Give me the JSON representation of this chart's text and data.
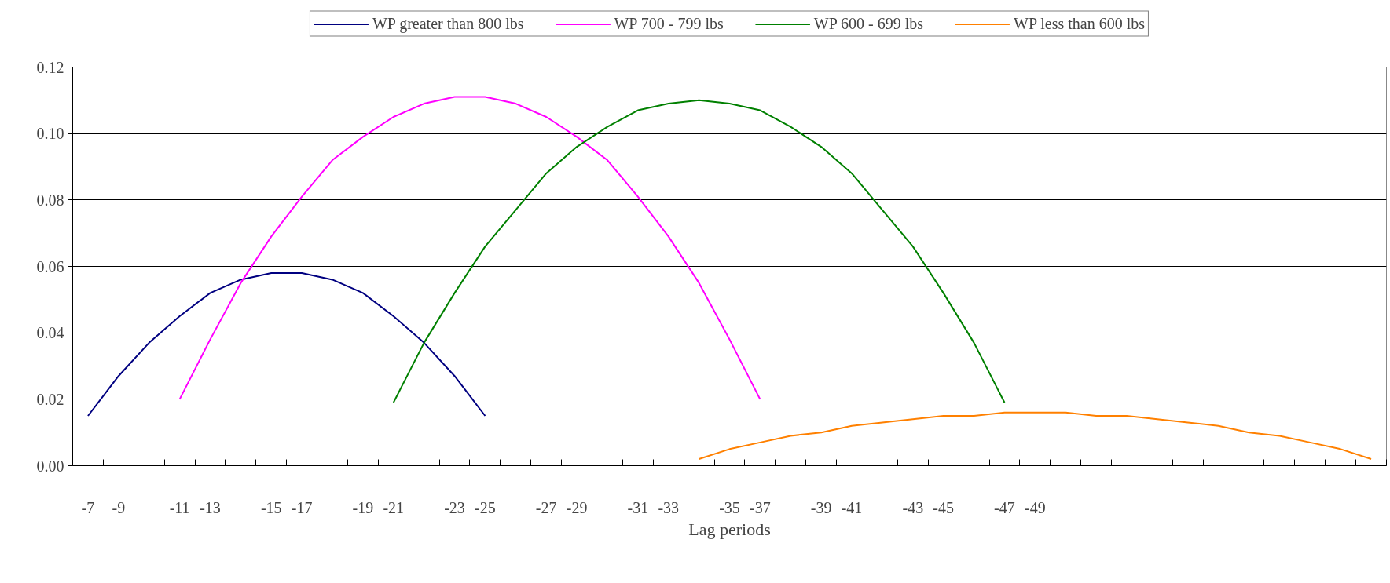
{
  "chart_data": {
    "type": "line",
    "xlabel": "Lag periods",
    "categories": [
      "-7",
      "-9",
      null,
      "-11",
      "-13",
      null,
      "-15",
      "-17",
      null,
      "-19",
      "-21",
      null,
      "-23",
      "-25",
      null,
      "-27",
      "-29",
      null,
      "-31",
      "-33",
      null,
      "-35",
      "-37",
      null,
      "-39",
      "-41",
      null,
      "-43",
      "-45",
      null,
      "-47",
      "-49",
      null,
      null,
      null,
      null,
      null,
      null,
      null,
      null,
      null,
      null,
      null
    ],
    "series": [
      {
        "name": "WP greater than 800 lbs",
        "color": "#000080",
        "values": [
          0.015,
          0.027,
          0.037,
          0.045,
          0.052,
          0.056,
          0.058,
          0.058,
          0.056,
          0.052,
          0.045,
          0.037,
          0.027,
          0.015,
          null,
          null,
          null,
          null,
          null,
          null,
          null,
          null,
          null,
          null,
          null,
          null,
          null,
          null,
          null,
          null,
          null,
          null,
          null,
          null,
          null,
          null,
          null,
          null,
          null,
          null,
          null,
          null,
          null
        ]
      },
      {
        "name": "WP 700 - 799 lbs",
        "color": "#ff00ff",
        "values": [
          null,
          null,
          null,
          0.02,
          0.038,
          0.055,
          0.069,
          0.081,
          0.092,
          0.099,
          0.105,
          0.109,
          0.111,
          0.111,
          0.109,
          0.105,
          0.099,
          0.092,
          0.081,
          0.069,
          0.055,
          0.038,
          0.02,
          null,
          null,
          null,
          null,
          null,
          null,
          null,
          null,
          null,
          null,
          null,
          null,
          null,
          null,
          null,
          null,
          null,
          null,
          null,
          null
        ]
      },
      {
        "name": "WP 600 - 699 lbs",
        "color": "#008000",
        "values": [
          null,
          null,
          null,
          null,
          null,
          null,
          null,
          null,
          null,
          null,
          0.019,
          0.037,
          0.052,
          0.066,
          0.077,
          0.088,
          0.096,
          0.102,
          0.107,
          0.109,
          0.11,
          0.109,
          0.107,
          0.102,
          0.096,
          0.088,
          0.077,
          0.066,
          0.052,
          0.037,
          0.019,
          null,
          null,
          null,
          null,
          null,
          null,
          null,
          null,
          null,
          null,
          null,
          null
        ]
      },
      {
        "name": "WP less than 600 lbs",
        "color": "#ff8000",
        "values": [
          null,
          null,
          null,
          null,
          null,
          null,
          null,
          null,
          null,
          null,
          null,
          null,
          null,
          null,
          null,
          null,
          null,
          null,
          null,
          null,
          0.002,
          0.005,
          0.007,
          0.009,
          0.01,
          0.012,
          0.013,
          0.014,
          0.015,
          0.015,
          0.016,
          0.016,
          0.016,
          0.015,
          0.015,
          0.014,
          0.013,
          0.012,
          0.01,
          0.009,
          0.007,
          0.005,
          0.002
        ]
      }
    ],
    "ylim": [
      0,
      0.12
    ],
    "yticks": [
      {
        "value": 0,
        "label": "0.00"
      },
      {
        "value": 0.02,
        "label": "0.02"
      },
      {
        "value": 0.04,
        "label": "0.04"
      },
      {
        "value": 0.06,
        "label": "0.06"
      },
      {
        "value": 0.08,
        "label": "0.08"
      },
      {
        "value": 0.1,
        "label": "0.10"
      },
      {
        "value": 0.12,
        "label": "0.12"
      }
    ],
    "grid": "y",
    "legend": "top",
    "marker": "none",
    "line_style": "solid"
  }
}
